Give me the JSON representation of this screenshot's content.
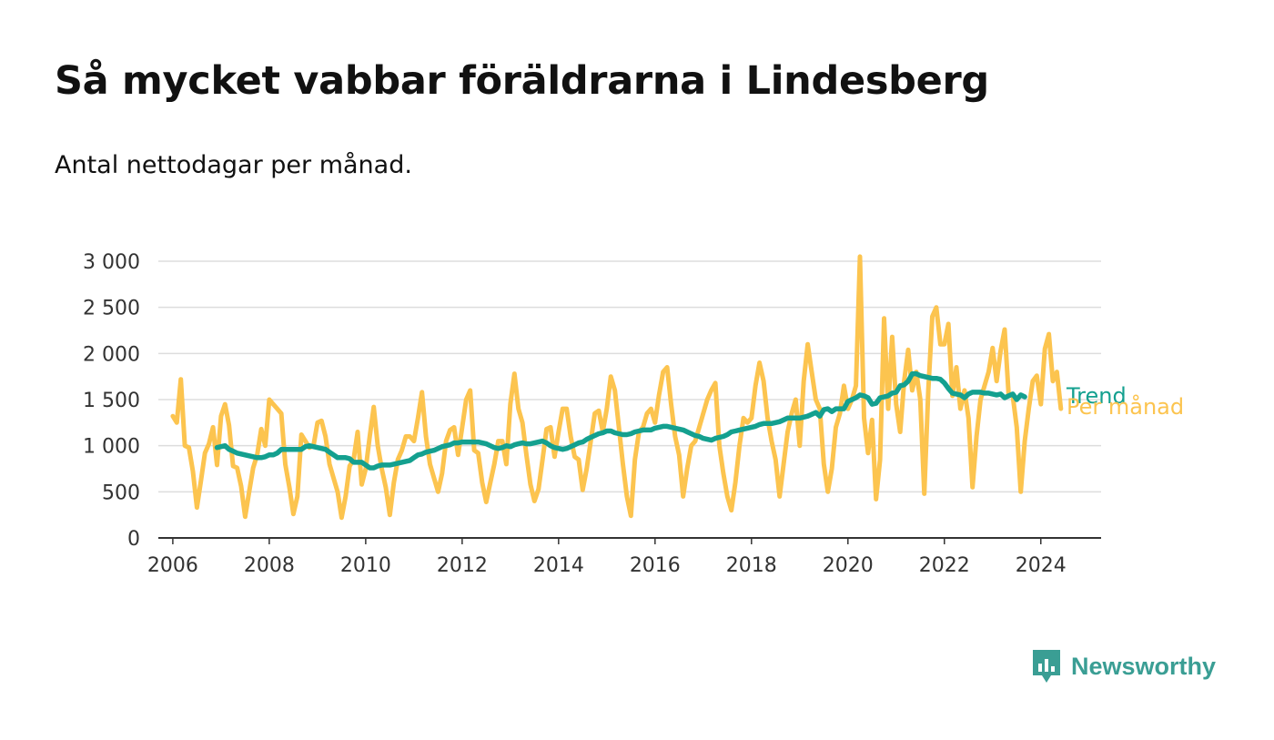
{
  "title": "Så mycket vabbar föräldrarna i Lindesberg",
  "subtitle": "Antal nettodagar per månad.",
  "brand": {
    "name": "Newsworthy",
    "color": "#3a9e94",
    "icon": "bar-chart-bubble-icon"
  },
  "colors": {
    "monthly": "#fcc44f",
    "trend": "#14a08f",
    "grid": "#dddddd",
    "axis": "#333333"
  },
  "chart_data": {
    "type": "line",
    "title": "Så mycket vabbar föräldrarna i Lindesberg",
    "subtitle": "Antal nettodagar per månad.",
    "xlabel": "",
    "ylabel": "",
    "xlim": [
      2005.7,
      2025.25
    ],
    "ylim": [
      0,
      3000
    ],
    "x_ticks": [
      "2006",
      "2008",
      "2010",
      "2012",
      "2014",
      "2016",
      "2018",
      "2020",
      "2022",
      "2024"
    ],
    "y_ticks": [
      "0",
      "500",
      "1 000",
      "1 500",
      "2 000",
      "2 500",
      "3 000"
    ],
    "grid": true,
    "legend": "end-of-line labels",
    "series": [
      {
        "name": "Per månad",
        "x_start": 2006.0,
        "x_step_months": 1,
        "values": [
          1320,
          1250,
          1720,
          1000,
          980,
          720,
          330,
          620,
          920,
          1020,
          1200,
          790,
          1320,
          1450,
          1220,
          780,
          760,
          560,
          230,
          500,
          760,
          900,
          1180,
          1000,
          1500,
          1450,
          1400,
          1350,
          800,
          550,
          260,
          450,
          1120,
          1050,
          980,
          1000,
          1250,
          1270,
          1100,
          800,
          650,
          500,
          220,
          450,
          780,
          850,
          1150,
          580,
          750,
          1100,
          1420,
          1000,
          750,
          550,
          250,
          600,
          850,
          950,
          1100,
          1100,
          1050,
          1300,
          1580,
          1100,
          800,
          650,
          500,
          700,
          1050,
          1170,
          1200,
          900,
          1200,
          1500,
          1600,
          950,
          920,
          600,
          390,
          600,
          800,
          1050,
          1050,
          800,
          1450,
          1780,
          1400,
          1250,
          900,
          580,
          400,
          530,
          850,
          1180,
          1200,
          880,
          1150,
          1400,
          1400,
          1100,
          880,
          850,
          520,
          750,
          1050,
          1350,
          1380,
          1150,
          1400,
          1750,
          1600,
          1200,
          800,
          450,
          240,
          850,
          1150,
          1200,
          1350,
          1400,
          1250,
          1550,
          1800,
          1850,
          1450,
          1100,
          900,
          450,
          750,
          1000,
          1050,
          1200,
          1350,
          1500,
          1600,
          1680,
          1000,
          700,
          450,
          300,
          600,
          1000,
          1300,
          1250,
          1300,
          1650,
          1900,
          1700,
          1300,
          1050,
          850,
          450,
          800,
          1150,
          1350,
          1500,
          1000,
          1700,
          2100,
          1800,
          1500,
          1400,
          800,
          500,
          750,
          1200,
          1350,
          1650,
          1400,
          1500,
          1650,
          3050,
          1300,
          920,
          1280,
          420,
          850,
          2380,
          1400,
          2180,
          1450,
          1150,
          1700,
          2040,
          1600,
          1800,
          1500,
          480,
          1600,
          2400,
          2500,
          2100,
          2100,
          2320,
          1540,
          1850,
          1400,
          1600,
          1300,
          550,
          1100,
          1500,
          1650,
          1800,
          2060,
          1700,
          2030,
          2260,
          1550,
          1550,
          1200,
          500,
          1050,
          1400,
          1700,
          1760,
          1450,
          2050,
          2210,
          1700,
          1800,
          1400
        ]
      },
      {
        "name": "Trend",
        "x_start": 2006.917,
        "x_step_months": 1,
        "values": [
          980,
          990,
          1000,
          960,
          940,
          920,
          910,
          900,
          890,
          880,
          870,
          870,
          880,
          900,
          900,
          920,
          960,
          960,
          960,
          960,
          960,
          960,
          990,
          1000,
          990,
          980,
          970,
          960,
          930,
          900,
          870,
          870,
          870,
          860,
          820,
          820,
          820,
          790,
          760,
          760,
          780,
          790,
          790,
          790,
          800,
          810,
          820,
          830,
          840,
          870,
          900,
          910,
          930,
          940,
          950,
          970,
          990,
          1000,
          1010,
          1030,
          1030,
          1040,
          1040,
          1040,
          1040,
          1040,
          1030,
          1020,
          1000,
          980,
          970,
          980,
          1000,
          990,
          1010,
          1020,
          1030,
          1020,
          1020,
          1030,
          1040,
          1050,
          1030,
          1000,
          980,
          970,
          960,
          970,
          990,
          1010,
          1030,
          1040,
          1070,
          1090,
          1110,
          1130,
          1140,
          1160,
          1160,
          1140,
          1130,
          1120,
          1120,
          1130,
          1150,
          1160,
          1170,
          1170,
          1170,
          1190,
          1200,
          1210,
          1210,
          1200,
          1190,
          1180,
          1170,
          1150,
          1130,
          1110,
          1100,
          1080,
          1070,
          1060,
          1080,
          1090,
          1100,
          1120,
          1150,
          1160,
          1170,
          1180,
          1190,
          1200,
          1210,
          1230,
          1240,
          1240,
          1240,
          1250,
          1260,
          1280,
          1300,
          1300,
          1300,
          1300,
          1310,
          1320,
          1340,
          1360,
          1320,
          1390,
          1400,
          1370,
          1400,
          1400,
          1400,
          1480,
          1500,
          1520,
          1550,
          1540,
          1520,
          1450,
          1460,
          1520,
          1530,
          1540,
          1570,
          1580,
          1650,
          1660,
          1700,
          1780,
          1780,
          1760,
          1750,
          1740,
          1730,
          1730,
          1720,
          1680,
          1620,
          1570,
          1560,
          1550,
          1520,
          1560,
          1580,
          1580,
          1580,
          1570,
          1570,
          1560,
          1550,
          1560,
          1520,
          1540,
          1560,
          1500,
          1550,
          1530
        ]
      }
    ]
  }
}
